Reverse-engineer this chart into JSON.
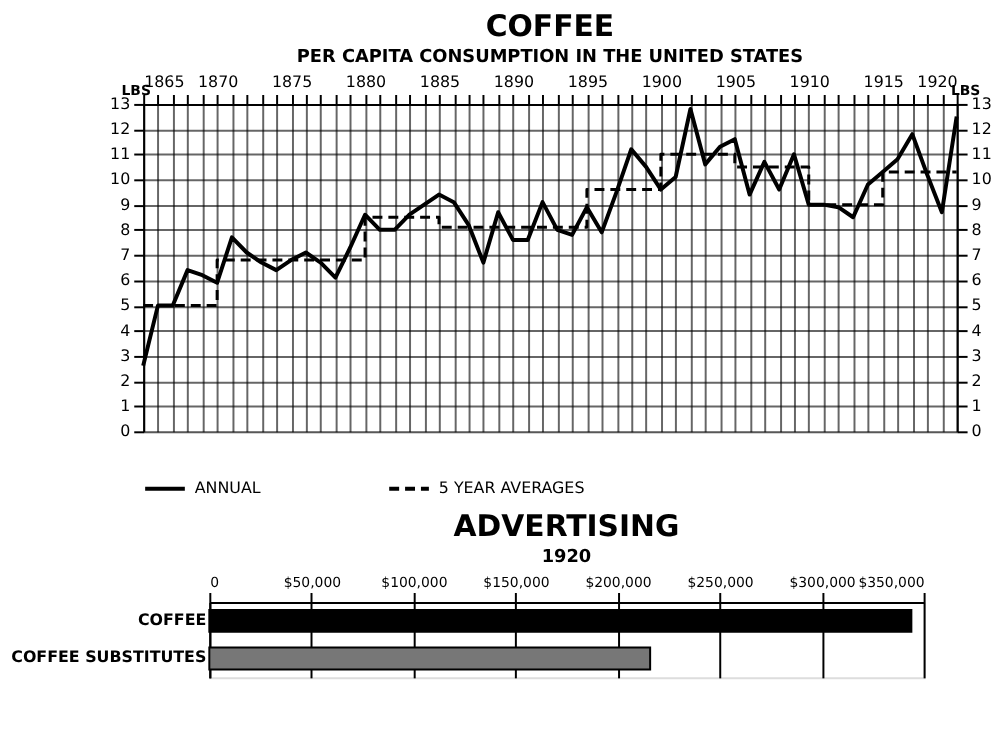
{
  "chart_data": [
    {
      "type": "line",
      "title": "COFFEE",
      "subtitle": "PER CAPITA CONSUMPTION IN THE UNITED STATES",
      "ylabel": "LBS",
      "y2label": "LBS",
      "x": [
        1865,
        1866,
        1867,
        1868,
        1869,
        1870,
        1871,
        1872,
        1873,
        1874,
        1875,
        1876,
        1877,
        1878,
        1879,
        1880,
        1881,
        1882,
        1883,
        1884,
        1885,
        1886,
        1887,
        1888,
        1889,
        1890,
        1891,
        1892,
        1893,
        1894,
        1895,
        1896,
        1897,
        1898,
        1899,
        1900,
        1901,
        1902,
        1903,
        1904,
        1905,
        1906,
        1907,
        1908,
        1909,
        1910,
        1911,
        1912,
        1913,
        1914,
        1915,
        1916,
        1917,
        1918,
        1919,
        1920
      ],
      "series": [
        {
          "name": "ANNUAL",
          "color": "#000000",
          "line_style": "solid",
          "values": [
            2.6,
            5.0,
            5.0,
            6.4,
            6.2,
            5.9,
            7.7,
            7.1,
            6.7,
            6.4,
            6.8,
            7.1,
            6.7,
            6.1,
            7.3,
            8.6,
            8.0,
            8.0,
            8.6,
            9.0,
            9.4,
            9.1,
            8.2,
            6.7,
            8.7,
            7.6,
            7.6,
            9.1,
            8.0,
            7.8,
            8.9,
            7.9,
            9.5,
            11.2,
            10.5,
            9.6,
            10.1,
            12.8,
            10.6,
            11.3,
            11.6,
            9.4,
            10.7,
            9.6,
            11.0,
            9.0,
            9.0,
            8.9,
            8.5,
            9.8,
            10.3,
            10.8,
            11.8,
            10.2,
            8.7,
            12.5
          ]
        },
        {
          "name": "5 YEAR AVERAGES",
          "color": "#000000",
          "type": "step",
          "line_style": "dashed",
          "x": [
            1865,
            1870,
            1875,
            1880,
            1885,
            1890,
            1895,
            1900,
            1905,
            1910,
            1915,
            1920
          ],
          "values": [
            5.0,
            6.8,
            6.8,
            8.5,
            8.1,
            8.1,
            9.6,
            11.0,
            10.5,
            9.0,
            10.3,
            10.3
          ]
        }
      ],
      "xlim": [
        1865,
        1920
      ],
      "xticks": [
        1865,
        {
          "value": 1866,
          "label": null
        },
        {
          "value": 1867,
          "label": null
        },
        {
          "value": 1868,
          "label": null
        },
        {
          "value": 1869,
          "label": null
        },
        1870,
        {
          "value": 1871,
          "label": null
        },
        {
          "value": 1872,
          "label": null
        },
        {
          "value": 1873,
          "label": null
        },
        {
          "value": 1874,
          "label": null
        },
        1875,
        {
          "value": 1876,
          "label": null
        },
        {
          "value": 1877,
          "label": null
        },
        {
          "value": 1878,
          "label": null
        },
        {
          "value": 1879,
          "label": null
        },
        1880,
        {
          "value": 1881,
          "label": null
        },
        {
          "value": 1882,
          "label": null
        },
        {
          "value": 1883,
          "label": null
        },
        {
          "value": 1884,
          "label": null
        },
        1885,
        {
          "value": 1886,
          "label": null
        },
        {
          "value": 1887,
          "label": null
        },
        {
          "value": 1888,
          "label": null
        },
        {
          "value": 1889,
          "label": null
        },
        1890,
        {
          "value": 1891,
          "label": null
        },
        {
          "value": 1892,
          "label": null
        },
        {
          "value": 1893,
          "label": null
        },
        {
          "value": 1894,
          "label": null
        },
        1895,
        {
          "value": 1896,
          "label": null
        },
        {
          "value": 1897,
          "label": null
        },
        {
          "value": 1898,
          "label": null
        },
        {
          "value": 1899,
          "label": null
        },
        1900,
        {
          "value": 1901,
          "label": null
        },
        {
          "value": 1902,
          "label": null
        },
        {
          "value": 1903,
          "label": null
        },
        {
          "value": 1904,
          "label": null
        },
        1905,
        {
          "value": 1906,
          "label": null
        },
        {
          "value": 1907,
          "label": null
        },
        {
          "value": 1908,
          "label": null
        },
        {
          "value": 1909,
          "label": null
        },
        1910,
        {
          "value": 1911,
          "label": null
        },
        {
          "value": 1912,
          "label": null
        },
        {
          "value": 1913,
          "label": null
        },
        {
          "value": 1914,
          "label": null
        },
        1915,
        {
          "value": 1916,
          "label": null
        },
        {
          "value": 1917,
          "label": null
        },
        {
          "value": 1918,
          "label": null
        },
        {
          "value": 1919,
          "label": null
        },
        1920
      ],
      "ylim": [
        0,
        13
      ],
      "yticks": [
        0,
        1,
        2,
        3,
        4,
        5,
        6,
        7,
        8,
        9,
        10,
        11,
        12,
        13
      ],
      "y2lim": [
        0,
        13
      ],
      "y2ticks": [
        0,
        1,
        2,
        3,
        4,
        5,
        6,
        7,
        8,
        9,
        10,
        11,
        12,
        13
      ],
      "grid": true,
      "legend": "bottom"
    },
    {
      "type": "bar",
      "orientation": "horizontal",
      "title": "ADVERTISING",
      "subtitle": "1920",
      "categories": [
        "COFFEE",
        "COFFEE SUBSTITUTES"
      ],
      "values": [
        344000,
        216000
      ],
      "colors": [
        "#000000",
        "#777777"
      ],
      "xlim": [
        0,
        350000
      ],
      "xticks": [
        0,
        {
          "value": 50000,
          "label": "$50,000"
        },
        {
          "value": 100000,
          "label": "$100,000"
        },
        {
          "value": 150000,
          "label": "$150,000"
        },
        {
          "value": 200000,
          "label": "$200,000"
        },
        {
          "value": 250000,
          "label": "$250,000"
        },
        {
          "value": 300000,
          "label": "$300,000"
        },
        {
          "value": 350000,
          "label": "$350,000"
        }
      ],
      "grid": "x"
    }
  ]
}
